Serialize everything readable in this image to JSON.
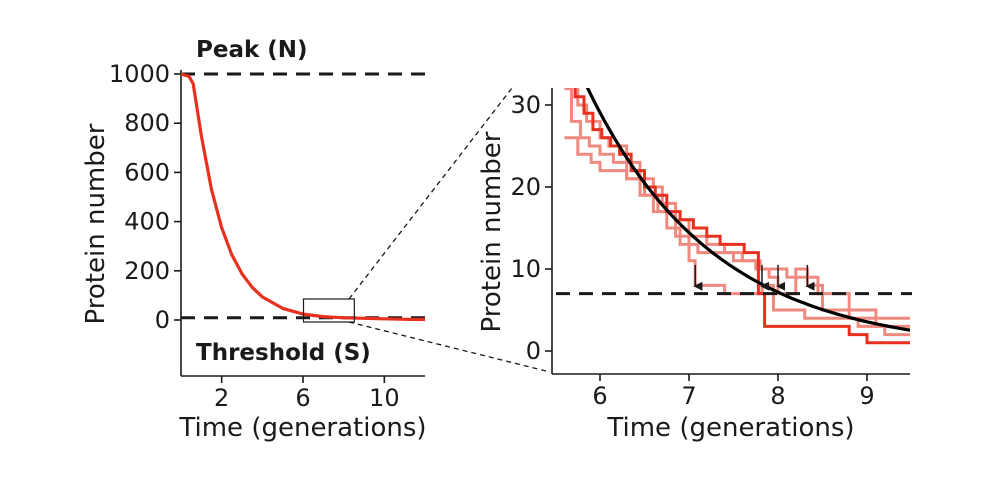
{
  "chart_data": [
    {
      "id": "overview",
      "type": "line",
      "xlabel": "Time (generations)",
      "ylabel": "Protein number",
      "xlim": [
        0,
        12
      ],
      "ylim": [
        -350,
        1000
      ],
      "xticks": [
        {
          "value": 2,
          "label": "2"
        },
        {
          "value": 6,
          "label": "6"
        },
        {
          "value": 10,
          "label": "10"
        }
      ],
      "yticks": [
        {
          "value": 1000,
          "label": "1000"
        },
        {
          "value": 800,
          "label": "800"
        },
        {
          "value": 600,
          "label": "600"
        },
        {
          "value": 400,
          "label": "400"
        },
        {
          "value": 200,
          "label": "200"
        },
        {
          "value": 0,
          "label": "0"
        }
      ],
      "reference_lines": [
        {
          "name": "peak",
          "y": 1000,
          "label": "Peak (N)"
        },
        {
          "name": "threshold",
          "y": 7,
          "label": "Threshold (S)"
        }
      ],
      "series": [
        {
          "name": "mean-decay",
          "color": "#e8301f",
          "x": [
            0,
            0.4,
            0.6,
            1.0,
            1.5,
            2.0,
            2.5,
            3.0,
            3.5,
            4.0,
            5.0,
            6.0,
            7.0,
            8.0,
            9.0,
            10.0,
            11.0,
            12.0
          ],
          "y": [
            1000,
            990,
            960,
            750,
            530,
            375,
            265,
            188,
            133,
            94,
            47,
            24,
            14,
            9,
            7,
            5,
            3,
            2
          ]
        }
      ],
      "zoom_box": {
        "x": [
          6,
          8.5
        ],
        "y": [
          0,
          35
        ]
      }
    },
    {
      "id": "zoom",
      "type": "line",
      "xlabel": "Time (generations)",
      "ylabel": "Protein number",
      "xlim": [
        5.6,
        9.5
      ],
      "ylim": [
        -1.5,
        32
      ],
      "xticks": [
        {
          "value": 6,
          "label": "6"
        },
        {
          "value": 7,
          "label": "7"
        },
        {
          "value": 8,
          "label": "8"
        },
        {
          "value": 9,
          "label": "9"
        }
      ],
      "yticks": [
        {
          "value": 30,
          "label": "30"
        },
        {
          "value": 20,
          "label": "20"
        },
        {
          "value": 10,
          "label": "10"
        },
        {
          "value": 0,
          "label": "0"
        }
      ],
      "threshold": 7,
      "arrows_x": [
        7.07,
        7.82,
        8.0,
        8.33
      ],
      "series": [
        {
          "name": "trajectory-1",
          "color": "#e8301f",
          "opacity": 1,
          "x": [
            5.6,
            5.72,
            5.82,
            5.92,
            6.02,
            6.12,
            6.22,
            6.35,
            6.5,
            6.62,
            6.75,
            6.9,
            7.05,
            7.2,
            7.35,
            7.5,
            7.62,
            7.78,
            7.85,
            8.4,
            8.8,
            9.0,
            9.3,
            9.5
          ],
          "y": [
            33,
            31,
            29,
            27,
            26,
            25,
            24,
            22,
            20,
            19,
            17,
            16,
            15,
            14,
            13,
            13,
            12,
            7,
            3,
            3,
            2,
            1,
            1,
            1
          ]
        },
        {
          "name": "trajectory-2",
          "color": "#f08a80",
          "opacity": 1,
          "x": [
            5.6,
            5.68,
            5.78,
            5.88,
            6.0,
            6.15,
            6.3,
            6.45,
            6.6,
            6.75,
            6.9,
            7.0,
            7.07,
            7.4,
            7.7,
            7.82,
            7.95,
            8.3,
            8.6,
            8.9,
            9.2,
            9.5
          ],
          "y": [
            32,
            28,
            26,
            25,
            24,
            23,
            21,
            19,
            17,
            15,
            13,
            11,
            8,
            7,
            7,
            8,
            5,
            4,
            4,
            3,
            2,
            2
          ]
        },
        {
          "name": "trajectory-3",
          "color": "#f08a80",
          "opacity": 1,
          "x": [
            5.6,
            5.75,
            5.85,
            6.0,
            6.1,
            6.3,
            6.45,
            6.6,
            6.7,
            6.85,
            7.0,
            7.2,
            7.4,
            7.6,
            7.75,
            7.9,
            8.0,
            8.2,
            8.33,
            8.5,
            8.8,
            9.1,
            9.5
          ],
          "y": [
            33,
            30,
            28,
            26,
            25,
            23,
            21,
            20,
            18,
            16,
            14,
            13,
            12,
            11,
            10,
            9,
            7,
            10,
            8,
            5,
            4,
            3,
            2
          ]
        },
        {
          "name": "trajectory-4",
          "color": "#f08a80",
          "opacity": 1,
          "x": [
            5.6,
            5.75,
            5.9,
            6.0,
            6.15,
            6.3,
            6.5,
            6.65,
            6.85,
            7.0,
            7.1,
            7.25,
            7.5,
            7.8,
            8.1,
            8.33,
            8.45,
            8.8,
            9.1,
            9.5
          ],
          "y": [
            26,
            24,
            23,
            22,
            22,
            21,
            19,
            17,
            14,
            13,
            12,
            12,
            11,
            10,
            9,
            9,
            7,
            5,
            4,
            3
          ]
        }
      ],
      "fit": {
        "name": "exponential-fit",
        "color": "#000000",
        "A": 32.3,
        "x0": 5.85,
        "k": 0.7
      }
    }
  ]
}
